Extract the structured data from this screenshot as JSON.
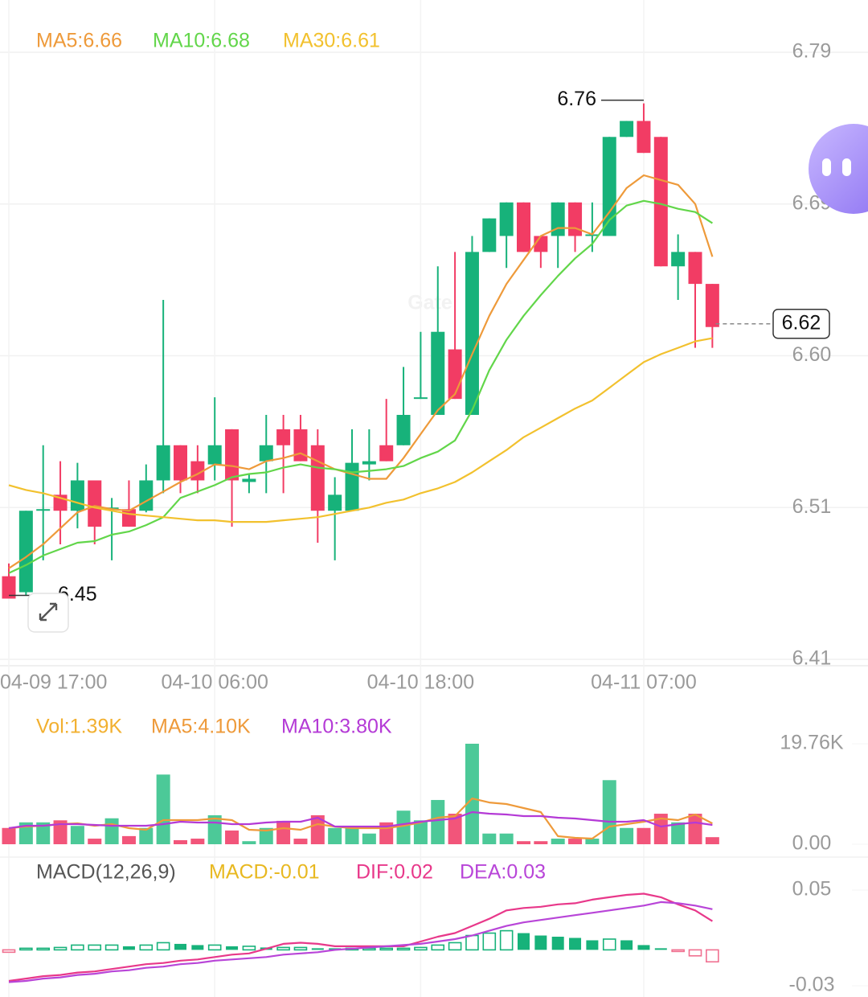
{
  "chart_data": [
    {
      "type": "candlestick",
      "categories": [
        "04-09 17:00",
        null,
        null,
        null,
        null,
        null,
        null,
        null,
        null,
        null,
        null,
        null,
        "04-10 06:00",
        null,
        null,
        null,
        null,
        null,
        null,
        null,
        null,
        null,
        null,
        null,
        "04-10 18:00",
        null,
        null,
        null,
        null,
        null,
        null,
        null,
        null,
        null,
        null,
        null,
        null,
        "04-11 07:00",
        null,
        null,
        null,
        null
      ],
      "open": [
        6.462,
        6.452,
        6.503,
        6.513,
        6.503,
        6.522,
        6.504,
        6.504,
        6.503,
        6.522,
        6.544,
        6.534,
        6.532,
        6.554,
        6.521,
        6.534,
        6.554,
        6.554,
        6.544,
        6.503,
        6.503,
        6.532,
        6.544,
        6.544,
        6.573,
        6.563,
        6.604,
        6.563,
        6.665,
        6.675,
        6.696,
        6.675,
        6.675,
        6.696,
        6.675,
        6.675,
        6.737,
        6.747,
        6.737,
        6.656,
        6.665,
        6.645
      ],
      "high": [
        6.47,
        6.503,
        6.544,
        6.534,
        6.533,
        6.522,
        6.511,
        6.522,
        6.532,
        6.635,
        6.544,
        6.544,
        6.574,
        6.554,
        6.526,
        6.563,
        6.563,
        6.563,
        6.554,
        6.524,
        6.554,
        6.554,
        6.573,
        6.593,
        6.615,
        6.656,
        6.665,
        6.675,
        6.686,
        6.696,
        6.696,
        6.675,
        6.696,
        6.696,
        6.696,
        6.737,
        6.747,
        6.758,
        6.737,
        6.676,
        6.665,
        6.645
      ],
      "low": [
        6.448,
        6.45,
        6.472,
        6.482,
        6.492,
        6.482,
        6.472,
        6.493,
        6.502,
        6.514,
        6.514,
        6.514,
        6.522,
        6.493,
        6.514,
        6.514,
        6.514,
        6.534,
        6.483,
        6.472,
        6.503,
        6.522,
        6.534,
        6.544,
        6.573,
        6.563,
        6.573,
        6.563,
        6.665,
        6.655,
        6.665,
        6.655,
        6.655,
        6.665,
        6.665,
        6.675,
        6.737,
        6.727,
        6.656,
        6.635,
        6.605,
        6.605
      ],
      "close": [
        6.448,
        6.503,
        6.504,
        6.503,
        6.522,
        6.493,
        6.505,
        6.493,
        6.522,
        6.544,
        6.522,
        6.522,
        6.544,
        6.522,
        6.523,
        6.544,
        6.544,
        6.534,
        6.503,
        6.513,
        6.533,
        6.534,
        6.534,
        6.563,
        6.574,
        6.615,
        6.573,
        6.665,
        6.686,
        6.696,
        6.665,
        6.665,
        6.696,
        6.675,
        6.676,
        6.737,
        6.747,
        6.727,
        6.656,
        6.665,
        6.645,
        6.618
      ],
      "up_color": "#17b27a",
      "down_color": "#f23c64",
      "series": [
        {
          "name": "MA5:6.66",
          "color": "#ee9a3a",
          "values": [
            6.467,
            6.474,
            6.482,
            6.492,
            6.502,
            6.506,
            6.504,
            6.503,
            6.509,
            6.515,
            6.521,
            6.526,
            6.532,
            6.531,
            6.529,
            6.534,
            6.536,
            6.539,
            6.534,
            6.529,
            6.526,
            6.523,
            6.523,
            6.536,
            6.551,
            6.566,
            6.576,
            6.601,
            6.625,
            6.645,
            6.66,
            6.675,
            6.68,
            6.68,
            6.676,
            6.69,
            6.705,
            6.713,
            6.71,
            6.707,
            6.695,
            6.662
          ]
        },
        {
          "name": "MA10:6.68",
          "color": "#62d64a",
          "values": [
            6.464,
            6.469,
            6.475,
            6.479,
            6.483,
            6.484,
            6.488,
            6.49,
            6.494,
            6.499,
            6.511,
            6.515,
            6.519,
            6.524,
            6.526,
            6.527,
            6.53,
            6.532,
            6.53,
            6.529,
            6.527,
            6.528,
            6.529,
            6.531,
            6.536,
            6.54,
            6.547,
            6.566,
            6.591,
            6.61,
            6.625,
            6.638,
            6.65,
            6.661,
            6.67,
            6.685,
            6.694,
            6.697,
            6.695,
            6.692,
            6.69,
            6.683
          ]
        },
        {
          "name": "MA30:6.61",
          "color": "#f2c12e",
          "values": [
            6.519,
            6.516,
            6.514,
            6.511,
            6.508,
            6.505,
            6.503,
            6.501,
            6.5,
            6.499,
            6.498,
            6.497,
            6.497,
            6.496,
            6.496,
            6.496,
            6.497,
            6.498,
            6.499,
            6.501,
            6.503,
            6.505,
            6.508,
            6.51,
            6.514,
            6.517,
            6.521,
            6.527,
            6.534,
            6.541,
            6.549,
            6.555,
            6.561,
            6.567,
            6.572,
            6.58,
            6.588,
            6.596,
            6.601,
            6.605,
            6.609,
            6.611
          ]
        }
      ],
      "ylim": [
        6.41,
        6.79
      ],
      "yticks": [
        6.41,
        {
          "value": 6.505,
          "label": "6.51"
        },
        {
          "value": 6.6,
          "label": "6.60"
        },
        {
          "value": 6.695,
          "label": "6.69"
        },
        6.79
      ],
      "grid": true,
      "high_label": 6.76,
      "low_label": 6.45,
      "last_price": 6.62,
      "watermark": "Gate"
    },
    {
      "type": "volume",
      "bars": {
        "name": "Vol:1.39K",
        "color": "#f2b030",
        "values": [
          3.2,
          4.3,
          4.3,
          4.7,
          3.6,
          1.1,
          5.1,
          1.6,
          3.2,
          13.7,
          0.8,
          1.1,
          5.7,
          2.7,
          0.6,
          3.2,
          4.6,
          1.1,
          5.7,
          3.2,
          3.2,
          2.1,
          4.3,
          6.6,
          4.7,
          8.7,
          6.0,
          19.76,
          2.1,
          2.1,
          0.6,
          0.6,
          1.1,
          1.1,
          1.1,
          12.6,
          3.2,
          3.2,
          6.0,
          4.3,
          6.0,
          1.39
        ]
      },
      "up_color": "#4cc998",
      "down_color": "#f2557a",
      "series": [
        {
          "name": "MA5:4.10K",
          "color": "#ee9a3a",
          "values": [
            3.16,
            3.48,
            3.63,
            3.95,
            4.11,
            3.63,
            3.95,
            3.16,
            2.84,
            4.74,
            4.74,
            4.74,
            5.06,
            4.74,
            2.84,
            2.69,
            3.16,
            2.84,
            3.95,
            3.48,
            3.16,
            3.16,
            3.16,
            3.63,
            4.27,
            5.21,
            5.53,
            9.0,
            8.21,
            7.9,
            7.11,
            6.32,
            1.58,
            1.26,
            1.11,
            3.48,
            3.95,
            4.42,
            5.06,
            4.74,
            5.85,
            4.1
          ]
        },
        {
          "name": "MA10:3.80K",
          "color": "#b43ad6",
          "values": [
            3.16,
            3.63,
            3.63,
            3.95,
            3.95,
            3.79,
            3.63,
            3.63,
            3.63,
            3.95,
            4.42,
            4.27,
            4.27,
            3.95,
            3.95,
            4.27,
            4.42,
            4.42,
            5.21,
            3.48,
            3.48,
            3.48,
            3.48,
            3.95,
            4.42,
            4.74,
            5.06,
            6.32,
            6.0,
            5.85,
            5.53,
            5.53,
            5.21,
            5.06,
            4.74,
            4.42,
            4.42,
            4.74,
            3.48,
            3.95,
            4.27,
            3.8
          ]
        }
      ],
      "ylim": [
        0,
        19.76
      ],
      "yticks": [
        {
          "value": 0,
          "label": "0.00"
        },
        {
          "value": 19.76,
          "label": "19.76K"
        }
      ]
    },
    {
      "type": "macd",
      "title": "MACD(12,26,9)",
      "bars": {
        "name": "MACD:-0.01",
        "color": "#e8b820",
        "values": [
          -0.002,
          0.0005,
          0.001,
          0.002,
          0.004,
          0.004,
          0.004,
          0.003,
          0.004,
          0.006,
          0.005,
          0.004,
          0.004,
          0.003,
          0.003,
          0.002,
          0.002,
          0.002,
          0.001,
          0.0005,
          0.0005,
          0.0005,
          0.0005,
          0.001,
          0.002,
          0.004,
          0.006,
          0.012,
          0.014,
          0.016,
          0.014,
          0.012,
          0.011,
          0.01,
          0.008,
          0.009,
          0.008,
          0.004,
          0.001,
          -0.001,
          -0.005,
          -0.01
        ]
      },
      "up_color": "#17b27a",
      "down_color": "#f07090",
      "series": [
        {
          "name": "DIF:0.02",
          "color": "#e8388a",
          "values": [
            -0.026,
            -0.024,
            -0.022,
            -0.021,
            -0.019,
            -0.018,
            -0.016,
            -0.014,
            -0.012,
            -0.011,
            -0.009,
            -0.008,
            -0.006,
            -0.004,
            -0.003,
            0.001,
            0.005,
            0.006,
            0.005,
            0.003,
            0.003,
            0.003,
            0.003,
            0.003,
            0.007,
            0.011,
            0.014,
            0.02,
            0.026,
            0.033,
            0.035,
            0.036,
            0.038,
            0.039,
            0.042,
            0.044,
            0.046,
            0.047,
            0.044,
            0.038,
            0.033,
            0.024
          ]
        },
        {
          "name": "DEA:0.03",
          "color": "#b845d8",
          "values": [
            -0.027,
            -0.026,
            -0.024,
            -0.023,
            -0.021,
            -0.02,
            -0.018,
            -0.017,
            -0.015,
            -0.014,
            -0.012,
            -0.011,
            -0.009,
            -0.008,
            -0.007,
            -0.006,
            -0.004,
            -0.003,
            -0.002,
            0.0,
            0.001,
            0.002,
            0.003,
            0.004,
            0.005,
            0.007,
            0.009,
            0.012,
            0.016,
            0.02,
            0.023,
            0.025,
            0.027,
            0.029,
            0.031,
            0.033,
            0.035,
            0.037,
            0.04,
            0.039,
            0.037,
            0.034
          ]
        }
      ],
      "ylim": [
        -0.03,
        0.05
      ],
      "yticks": [
        -0.03,
        0.05
      ]
    }
  ]
}
